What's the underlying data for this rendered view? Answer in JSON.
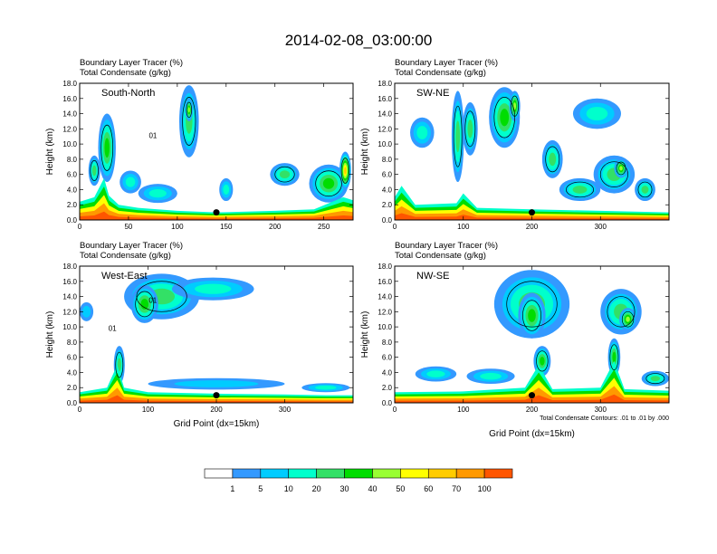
{
  "title": "2014-02-08_03:00:00",
  "chart_data": [
    {
      "type": "heatmap",
      "panel": "South-North",
      "subtitle_lines": [
        "Boundary Layer Tracer   (%)",
        "Total Condensate   (g/kg)"
      ],
      "ylabel": "Height (km)",
      "xlabel": "",
      "xlim": [
        0,
        280
      ],
      "ylim": [
        0,
        18
      ],
      "x_ticks": [
        "0",
        "50",
        "100",
        "150",
        "200",
        "250"
      ],
      "x_tick_values": [
        0,
        50,
        100,
        150,
        200,
        250
      ],
      "y_ticks": [
        "0.0",
        "2.0",
        "4.0",
        "6.0",
        "8.0",
        "10.0",
        "12.0",
        "14.0",
        "16.0",
        "18.0"
      ],
      "y_tick_values": [
        0,
        2,
        4,
        6,
        8,
        10,
        12,
        14,
        16,
        18
      ],
      "marker": [
        140,
        1.0
      ],
      "contour_labels": [
        {
          "text": "01",
          "x": 75,
          "y": 10.8
        }
      ],
      "bl_tops": [
        [
          0,
          2.4
        ],
        [
          15,
          3.0
        ],
        [
          25,
          5.5
        ],
        [
          30,
          3.2
        ],
        [
          40,
          2.0
        ],
        [
          60,
          1.6
        ],
        [
          100,
          1.2
        ],
        [
          140,
          1.0
        ],
        [
          200,
          1.2
        ],
        [
          240,
          1.4
        ],
        [
          270,
          3.0
        ],
        [
          280,
          2.6
        ]
      ],
      "blobs": [
        {
          "x": 28,
          "y": 9.5,
          "w": 18,
          "h": 9.0,
          "v": 30
        },
        {
          "x": 15,
          "y": 6.5,
          "w": 12,
          "h": 4.0,
          "v": 20
        },
        {
          "x": 52,
          "y": 5.0,
          "w": 22,
          "h": 3.0,
          "v": 10
        },
        {
          "x": 112,
          "y": 13.0,
          "w": 20,
          "h": 9.5,
          "v": 20
        },
        {
          "x": 112,
          "y": 14.5,
          "w": 8,
          "h": 3.0,
          "v": 40
        },
        {
          "x": 150,
          "y": 4.0,
          "w": 14,
          "h": 3.0,
          "v": 10
        },
        {
          "x": 210,
          "y": 6.0,
          "w": 30,
          "h": 3.0,
          "v": 20
        },
        {
          "x": 255,
          "y": 4.8,
          "w": 40,
          "h": 5.0,
          "v": 30
        },
        {
          "x": 272,
          "y": 6.5,
          "w": 12,
          "h": 5.0,
          "v": 60
        },
        {
          "x": 80,
          "y": 3.5,
          "w": 40,
          "h": 2.5,
          "v": 10
        }
      ]
    },
    {
      "type": "heatmap",
      "panel": "SW-NE",
      "subtitle_lines": [
        "Boundary Layer Tracer   (%)",
        "Total Condensate   (g/kg)"
      ],
      "ylabel": "Height (km)",
      "xlabel": "",
      "xlim": [
        0,
        400
      ],
      "ylim": [
        0,
        18
      ],
      "x_ticks": [
        "0",
        "100",
        "200",
        "300"
      ],
      "x_tick_values": [
        0,
        100,
        200,
        300
      ],
      "y_ticks": [
        "0.0",
        "2.0",
        "4.0",
        "6.0",
        "8.0",
        "10.0",
        "12.0",
        "14.0",
        "16.0",
        "18.0"
      ],
      "y_tick_values": [
        0,
        2,
        4,
        6,
        8,
        10,
        12,
        14,
        16,
        18
      ],
      "marker": [
        200,
        1.0
      ],
      "contour_labels": [],
      "bl_tops": [
        [
          0,
          3.0
        ],
        [
          10,
          4.5
        ],
        [
          30,
          2.0
        ],
        [
          90,
          2.2
        ],
        [
          100,
          3.5
        ],
        [
          120,
          1.6
        ],
        [
          200,
          1.4
        ],
        [
          250,
          1.3
        ],
        [
          300,
          1.2
        ],
        [
          350,
          1.1
        ],
        [
          400,
          1.0
        ]
      ],
      "blobs": [
        {
          "x": 40,
          "y": 11.5,
          "w": 35,
          "h": 4.0,
          "v": 10
        },
        {
          "x": 92,
          "y": 11.0,
          "w": 18,
          "h": 12.0,
          "v": 20
        },
        {
          "x": 110,
          "y": 12.0,
          "w": 22,
          "h": 7.0,
          "v": 20
        },
        {
          "x": 160,
          "y": 13.5,
          "w": 45,
          "h": 8.0,
          "v": 30
        },
        {
          "x": 175,
          "y": 15.0,
          "w": 16,
          "h": 4.0,
          "v": 40
        },
        {
          "x": 230,
          "y": 8.0,
          "w": 30,
          "h": 5.0,
          "v": 20
        },
        {
          "x": 295,
          "y": 14.0,
          "w": 70,
          "h": 4.0,
          "v": 10
        },
        {
          "x": 320,
          "y": 6.0,
          "w": 60,
          "h": 5.0,
          "v": 20
        },
        {
          "x": 330,
          "y": 6.8,
          "w": 20,
          "h": 2.5,
          "v": 40
        },
        {
          "x": 270,
          "y": 4.0,
          "w": 60,
          "h": 3.0,
          "v": 20
        },
        {
          "x": 365,
          "y": 4.0,
          "w": 30,
          "h": 3.0,
          "v": 20
        }
      ]
    },
    {
      "type": "heatmap",
      "panel": "West-East",
      "subtitle_lines": [
        "Boundary Layer Tracer   (%)",
        "Total Condensate   (g/kg)"
      ],
      "ylabel": "Height (km)",
      "xlabel": "Grid Point (dx=15km)",
      "xlim": [
        0,
        400
      ],
      "ylim": [
        0,
        18
      ],
      "x_ticks": [
        "0",
        "100",
        "200",
        "300"
      ],
      "x_tick_values": [
        0,
        100,
        200,
        300
      ],
      "y_ticks": [
        "0.0",
        "2.0",
        "4.0",
        "6.0",
        "8.0",
        "10.0",
        "12.0",
        "14.0",
        "16.0",
        "18.0"
      ],
      "y_tick_values": [
        0,
        2,
        4,
        6,
        8,
        10,
        12,
        14,
        16,
        18
      ],
      "marker": [
        200,
        1.0
      ],
      "contour_labels": [
        {
          "text": "01",
          "x": 107,
          "y": 13.2
        },
        {
          "text": "01",
          "x": 48,
          "y": 9.5
        }
      ],
      "bl_tops": [
        [
          0,
          1.4
        ],
        [
          40,
          2.0
        ],
        [
          55,
          5.0
        ],
        [
          65,
          2.0
        ],
        [
          100,
          1.4
        ],
        [
          200,
          1.2
        ],
        [
          300,
          1.1
        ],
        [
          360,
          1.0
        ],
        [
          400,
          1.0
        ]
      ],
      "blobs": [
        {
          "x": 120,
          "y": 14.0,
          "w": 110,
          "h": 6.0,
          "v": 20
        },
        {
          "x": 95,
          "y": 13.0,
          "w": 40,
          "h": 5.0,
          "v": 30
        },
        {
          "x": 195,
          "y": 15.0,
          "w": 120,
          "h": 3.0,
          "v": 10
        },
        {
          "x": 10,
          "y": 12.0,
          "w": 20,
          "h": 2.5,
          "v": 5
        },
        {
          "x": 58,
          "y": 5.0,
          "w": 16,
          "h": 5.0,
          "v": 20
        },
        {
          "x": 200,
          "y": 2.5,
          "w": 200,
          "h": 1.5,
          "v": 5
        },
        {
          "x": 360,
          "y": 2.0,
          "w": 70,
          "h": 1.2,
          "v": 10
        }
      ]
    },
    {
      "type": "heatmap",
      "panel": "NW-SE",
      "subtitle_lines": [
        "Boundary Layer Tracer   (%)",
        "Total Condensate   (g/kg)"
      ],
      "ylabel": "Height (km)",
      "xlabel": "Grid Point (dx=15km)",
      "xlim": [
        0,
        400
      ],
      "ylim": [
        0,
        18
      ],
      "x_ticks": [
        "0",
        "100",
        "200",
        "300"
      ],
      "x_tick_values": [
        0,
        100,
        200,
        300
      ],
      "y_ticks": [
        "0.0",
        "2.0",
        "4.0",
        "6.0",
        "8.0",
        "10.0",
        "12.0",
        "14.0",
        "16.0",
        "18.0"
      ],
      "y_tick_values": [
        0,
        2,
        4,
        6,
        8,
        10,
        12,
        14,
        16,
        18
      ],
      "marker": [
        200,
        1.0
      ],
      "contour_labels": [],
      "note": "Total Condensate Contours: .01 to .01 by .000",
      "bl_tops": [
        [
          0,
          1.4
        ],
        [
          100,
          1.5
        ],
        [
          190,
          2.0
        ],
        [
          210,
          5.0
        ],
        [
          230,
          1.8
        ],
        [
          300,
          2.0
        ],
        [
          320,
          5.5
        ],
        [
          335,
          1.8
        ],
        [
          400,
          1.6
        ]
      ],
      "blobs": [
        {
          "x": 200,
          "y": 13.0,
          "w": 110,
          "h": 9.0,
          "v": 20
        },
        {
          "x": 200,
          "y": 11.5,
          "w": 40,
          "h": 6.0,
          "v": 30
        },
        {
          "x": 330,
          "y": 12.0,
          "w": 60,
          "h": 6.0,
          "v": 20
        },
        {
          "x": 340,
          "y": 11.0,
          "w": 25,
          "h": 3.0,
          "v": 40
        },
        {
          "x": 215,
          "y": 5.5,
          "w": 25,
          "h": 4.0,
          "v": 30
        },
        {
          "x": 320,
          "y": 6.0,
          "w": 18,
          "h": 5.0,
          "v": 30
        },
        {
          "x": 60,
          "y": 3.8,
          "w": 60,
          "h": 2.0,
          "v": 10
        },
        {
          "x": 140,
          "y": 3.5,
          "w": 70,
          "h": 2.0,
          "v": 10
        },
        {
          "x": 380,
          "y": 3.2,
          "w": 40,
          "h": 2.0,
          "v": 20
        }
      ]
    }
  ],
  "colorbar": {
    "labels": [
      "1",
      "5",
      "10",
      "20",
      "30",
      "40",
      "50",
      "60",
      "70",
      "100"
    ],
    "colors": [
      "#ffffff",
      "#3399ff",
      "#00ccff",
      "#00ffcc",
      "#33e066",
      "#00dd00",
      "#99ff33",
      "#ffff00",
      "#ffcc00",
      "#ff9900",
      "#ff5500",
      "#ff0000"
    ]
  },
  "palette_levels": [
    1,
    5,
    10,
    20,
    30,
    40,
    50,
    60,
    70,
    100
  ]
}
